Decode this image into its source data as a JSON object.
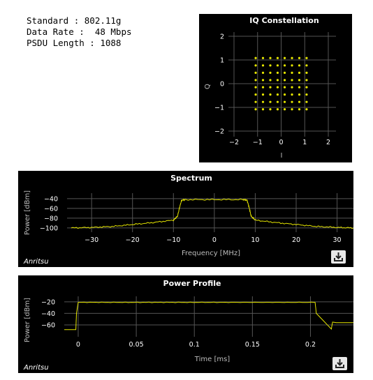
{
  "info": {
    "standard": "Standard : 802.11g",
    "data_rate": "Data Rate :  48 Mbps",
    "psdu_length": "PSDU Length : 1088"
  },
  "brand": "Anritsu",
  "icons": {
    "download": "download-icon"
  },
  "colors": {
    "trace": "#e6e600",
    "background": "#000000",
    "grid": "#555555"
  },
  "chart_data": [
    {
      "type": "scatter",
      "title": "IQ Constellation",
      "xlabel": "I",
      "ylabel": "Q",
      "xlim": [
        -2,
        2
      ],
      "ylim": [
        -2,
        2
      ],
      "xticks": [
        -2,
        -1,
        0,
        1,
        2
      ],
      "yticks": [
        2,
        1,
        0,
        -1,
        -2
      ],
      "constellation": "64-QAM",
      "levels": [
        -1.08,
        -0.77,
        -0.46,
        -0.15,
        0.15,
        0.46,
        0.77,
        1.08
      ],
      "grid": true
    },
    {
      "type": "line",
      "title": "Spectrum",
      "xlabel": "Frequency [MHz]",
      "ylabel": "Power [dBm]",
      "xlim": [
        -36,
        34
      ],
      "ylim": [
        -103,
        -33
      ],
      "xticks": [
        -30,
        -20,
        -10,
        0,
        10,
        20,
        30
      ],
      "yticks": [
        -40,
        -60,
        -80,
        -100
      ],
      "grid": true,
      "series": [
        {
          "x": [
            -35,
            -30,
            -25,
            -20,
            -15,
            -10,
            -9,
            -8.5,
            -8,
            -7,
            0,
            7,
            8,
            8.5,
            9,
            10,
            15,
            20,
            25,
            30,
            34
          ],
          "values": [
            -100,
            -99,
            -97,
            -93,
            -89,
            -84,
            -76,
            -58,
            -43,
            -42,
            -42,
            -42,
            -43,
            -58,
            -76,
            -84,
            -89,
            -93,
            -97,
            -99,
            -100
          ]
        }
      ]
    },
    {
      "type": "line",
      "title": "Power Profile",
      "xlabel": "Time [ms]",
      "ylabel": "Power [dBm]",
      "xlim": [
        -0.012,
        0.237
      ],
      "ylim": [
        -78,
        -13
      ],
      "xticks": [
        0,
        0.05,
        0.1,
        0.15,
        0.2
      ],
      "yticks": [
        -20,
        -40,
        -60
      ],
      "grid": true,
      "series": [
        {
          "x": [
            -0.012,
            -0.002,
            -0.0015,
            0,
            0.203,
            0.204,
            0.205,
            0.218,
            0.219,
            0.222,
            0.237
          ],
          "values": [
            -68,
            -68,
            -40,
            -21,
            -21,
            -21,
            -40,
            -67,
            -55,
            -56,
            -56
          ]
        }
      ]
    }
  ]
}
